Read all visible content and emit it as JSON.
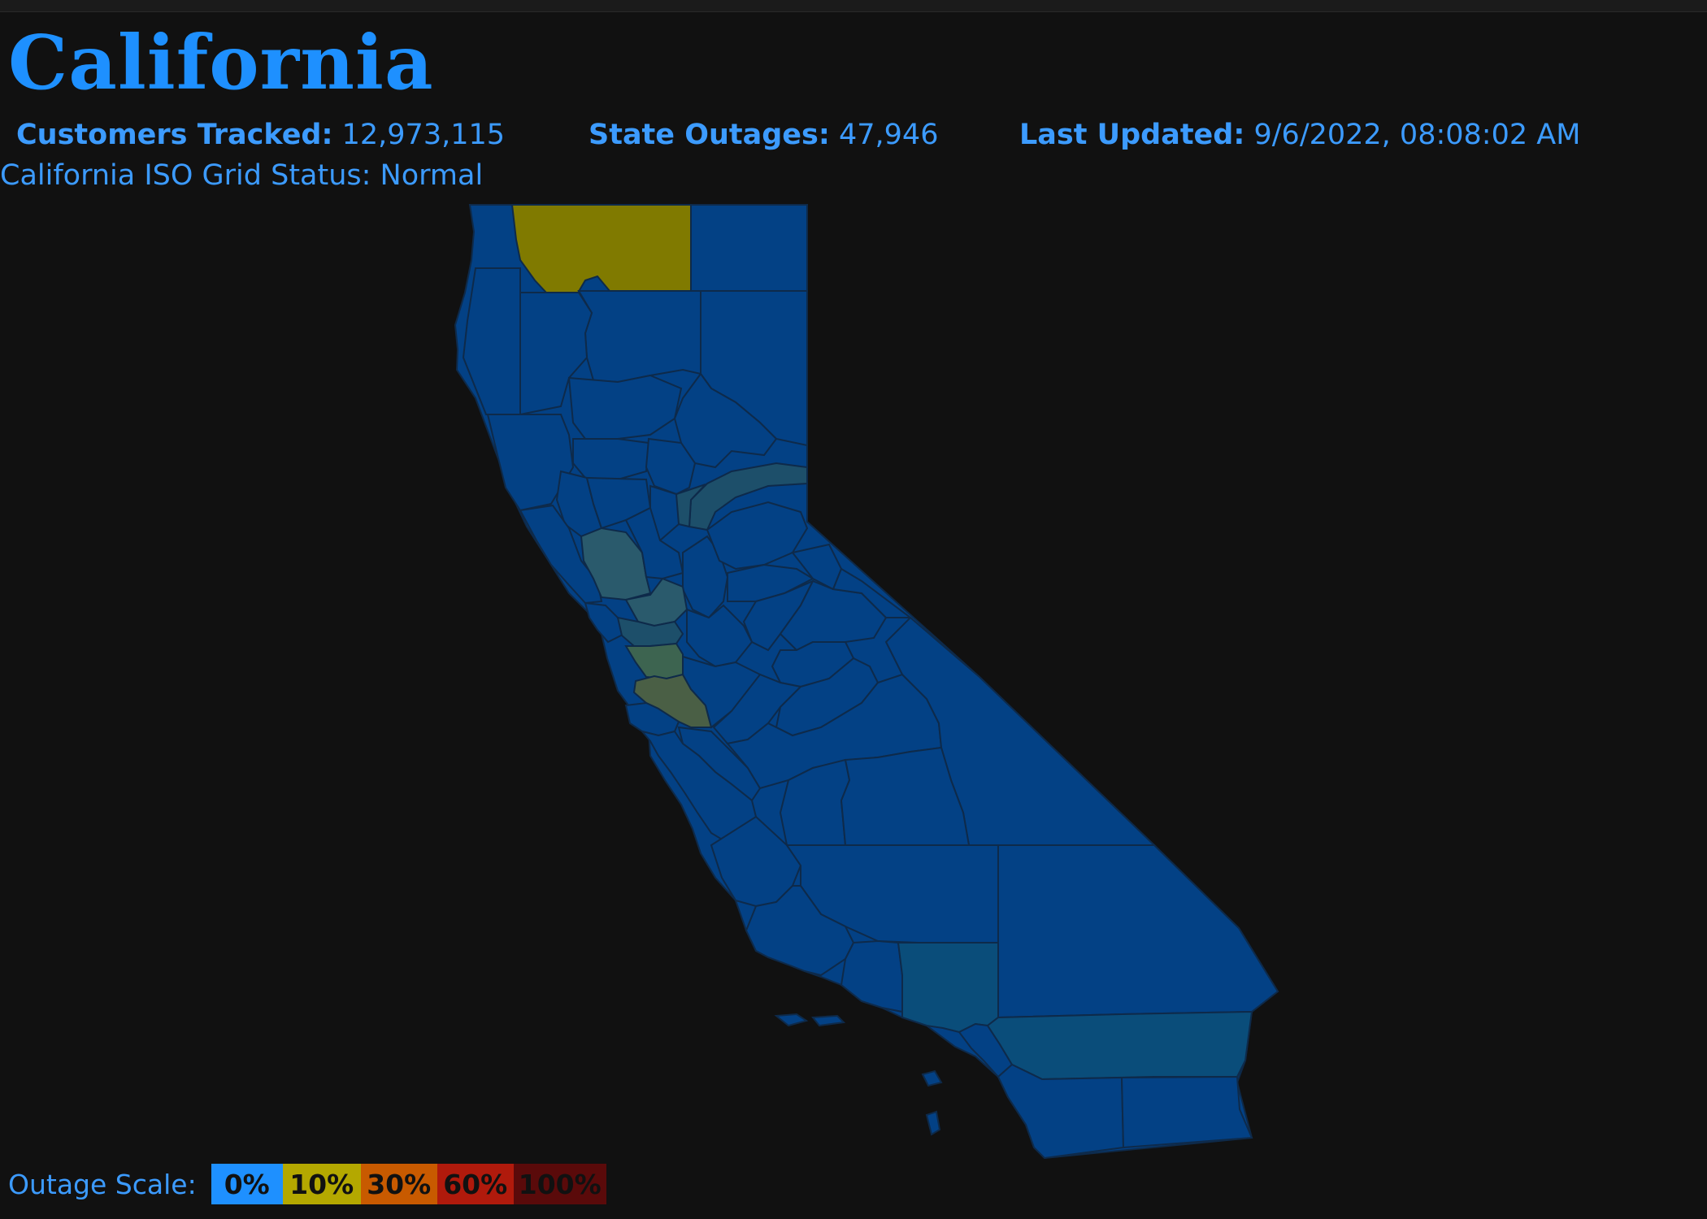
{
  "title": "California",
  "stats": {
    "customers_label": "Customers Tracked:",
    "customers_value": "12,973,115",
    "outages_label": "State Outages:",
    "outages_value": "47,946",
    "updated_label": "Last Updated:",
    "updated_value": "9/6/2022, 08:08:02 AM"
  },
  "grid_status": "California ISO Grid Status: Normal",
  "legend": {
    "label": "Outage Scale:",
    "items": [
      {
        "text": "0%",
        "color": "#1e90ff"
      },
      {
        "text": "10%",
        "color": "#b4a800"
      },
      {
        "text": "30%",
        "color": "#c85a00"
      },
      {
        "text": "60%",
        "color": "#b01a0c"
      },
      {
        "text": "100%",
        "color": "#5a0a0a"
      }
    ]
  },
  "colors": {
    "base": "#034185",
    "low": "#0a4d7a",
    "moderate": "#3d6450",
    "elevated": "#4a5f45",
    "high": "#807a00",
    "border": "#0e2a4a"
  }
}
